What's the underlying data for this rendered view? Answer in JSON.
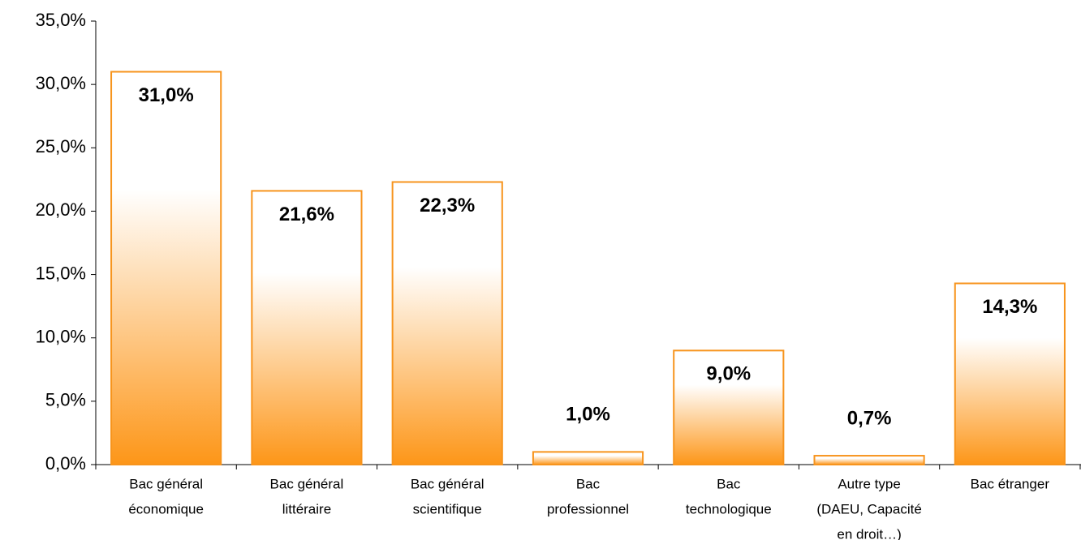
{
  "chart_data": {
    "type": "bar",
    "categories": [
      [
        "Bac général",
        "économique"
      ],
      [
        "Bac général",
        "littéraire"
      ],
      [
        "Bac général",
        "scientifique"
      ],
      [
        "Bac",
        "professionnel"
      ],
      [
        "Bac",
        "technologique"
      ],
      [
        "Autre type",
        "(DAEU, Capacité",
        "en droit…)"
      ],
      [
        "Bac étranger"
      ]
    ],
    "values": [
      31.0,
      21.6,
      22.3,
      1.0,
      9.0,
      0.7,
      14.3
    ],
    "value_labels": [
      "31,0%",
      "21,6%",
      "22,3%",
      "1,0%",
      "9,0%",
      "0,7%",
      "14,3%"
    ],
    "color": "#f7941d",
    "ylim": [
      0,
      35
    ],
    "yticks": [
      {
        "value": 0,
        "label": "0,0%"
      },
      {
        "value": 5,
        "label": "5,0%"
      },
      {
        "value": 10,
        "label": "10,0%"
      },
      {
        "value": 15,
        "label": "15,0%"
      },
      {
        "value": 20,
        "label": "20,0%"
      },
      {
        "value": 25,
        "label": "25,0%"
      },
      {
        "value": 30,
        "label": "30,0%"
      },
      {
        "value": 35,
        "label": "35,0%"
      }
    ],
    "grid": false
  }
}
